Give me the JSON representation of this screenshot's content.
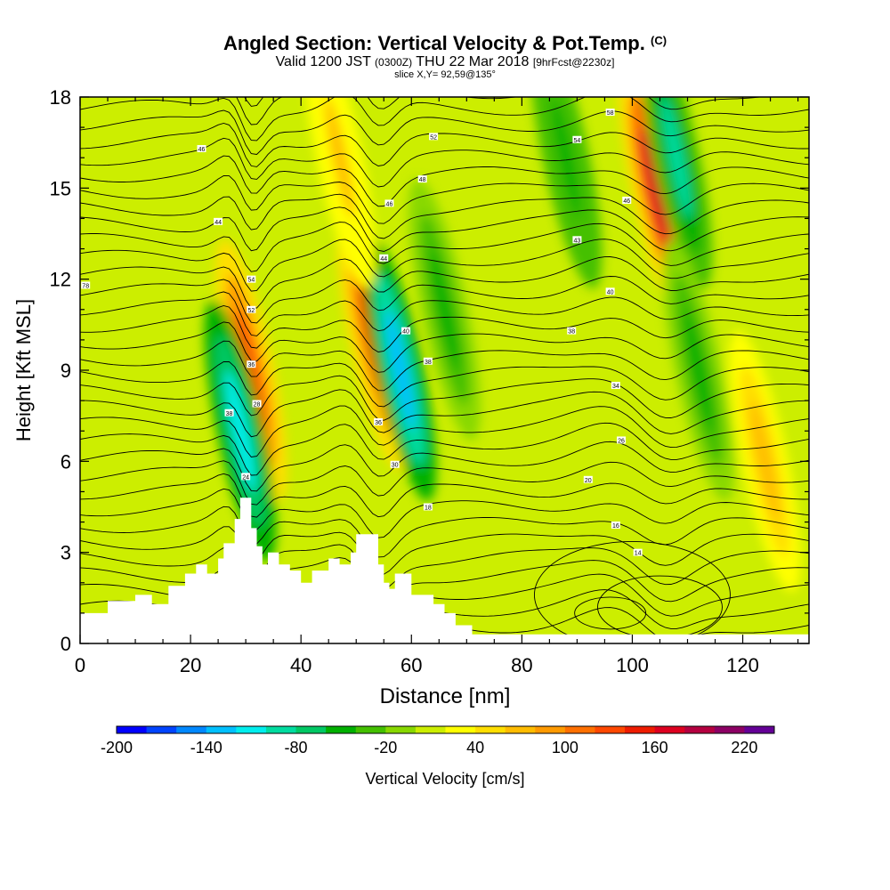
{
  "title": {
    "main": "Angled Section: Vertical Velocity & Pot.Temp.",
    "copyright": "(C)",
    "valid_prefix": "Valid 1200 JST",
    "valid_z": "(0300Z)",
    "valid_date": "THU 22 Mar 2018",
    "forecast": "[9hrFcst@2230z]",
    "slice": "slice X,Y= 92,59@135°"
  },
  "chart_data": {
    "type": "heatmap",
    "xlabel": "Distance [nm]",
    "ylabel": "Height [Kft MSL]",
    "xlim": [
      0,
      132
    ],
    "ylim": [
      0,
      18
    ],
    "x_ticks": [
      0,
      20,
      40,
      60,
      80,
      100,
      120
    ],
    "y_ticks": [
      0,
      3,
      6,
      9,
      12,
      15,
      18
    ],
    "terrain": [
      [
        0,
        1.0
      ],
      [
        4,
        1.0
      ],
      [
        5,
        1.4
      ],
      [
        9,
        1.4
      ],
      [
        10,
        1.6
      ],
      [
        12,
        1.6
      ],
      [
        13,
        1.3
      ],
      [
        15,
        1.3
      ],
      [
        16,
        1.9
      ],
      [
        18,
        1.9
      ],
      [
        19,
        2.3
      ],
      [
        21,
        2.6
      ],
      [
        22,
        2.6
      ],
      [
        23,
        2.3
      ],
      [
        24,
        2.3
      ],
      [
        25,
        2.8
      ],
      [
        26,
        3.3
      ],
      [
        27,
        3.3
      ],
      [
        28,
        4.1
      ],
      [
        29,
        4.8
      ],
      [
        30,
        4.8
      ],
      [
        31,
        3.8
      ],
      [
        32,
        3.2
      ],
      [
        33,
        2.6
      ],
      [
        34,
        3.0
      ],
      [
        35,
        3.0
      ],
      [
        36,
        2.6
      ],
      [
        38,
        2.4
      ],
      [
        40,
        2.0
      ],
      [
        41,
        2.0
      ],
      [
        42,
        2.4
      ],
      [
        44,
        2.4
      ],
      [
        45,
        2.8
      ],
      [
        47,
        2.6
      ],
      [
        49,
        3.0
      ],
      [
        50,
        3.6
      ],
      [
        53,
        3.6
      ],
      [
        54,
        2.6
      ],
      [
        55,
        2.0
      ],
      [
        56,
        1.8
      ],
      [
        57,
        2.3
      ],
      [
        59,
        2.3
      ],
      [
        60,
        1.6
      ],
      [
        63,
        1.6
      ],
      [
        64,
        1.3
      ],
      [
        66,
        1.0
      ],
      [
        68,
        0.6
      ],
      [
        70,
        0.6
      ],
      [
        71,
        0.3
      ],
      [
        132,
        0.3
      ]
    ],
    "colorbar": {
      "label": "Vertical Velocity [cm/s]",
      "min": -200,
      "max": 240,
      "step": 20,
      "tick_labels": [
        "-200",
        "-140",
        "-80",
        "-20",
        "40",
        "100",
        "160",
        "220"
      ],
      "colors": [
        "#0000ff",
        "#0044ff",
        "#0088ff",
        "#00c0ff",
        "#00eeee",
        "#00dca0",
        "#00c864",
        "#00b000",
        "#44c000",
        "#88d800",
        "#ccee00",
        "#ffff00",
        "#ffde00",
        "#ffbc00",
        "#ff9a00",
        "#ff7000",
        "#ff4800",
        "#ee1c00",
        "#dd0020",
        "#b40040",
        "#8c0064",
        "#640096"
      ]
    },
    "velocity_features": [
      {
        "x": 31,
        "z": 9,
        "v": 130
      },
      {
        "x": 29,
        "z": 7,
        "v": -120
      },
      {
        "x": 53,
        "z": 10,
        "v": 150
      },
      {
        "x": 58,
        "z": 9,
        "v": -130
      },
      {
        "x": 104,
        "z": 15,
        "v": 170
      },
      {
        "x": 108,
        "z": 16,
        "v": -90
      },
      {
        "x": 88,
        "z": 16,
        "v": -60
      },
      {
        "x": 124,
        "z": 6,
        "v": 70
      },
      {
        "x": 47,
        "z": 16,
        "v": 60
      },
      {
        "x": 66,
        "z": 11,
        "v": -50
      },
      {
        "x": 112,
        "z": 9,
        "v": -50
      }
    ],
    "contour_labels": [
      {
        "text": "46",
        "x": 22,
        "z": 16.3
      },
      {
        "text": "44",
        "x": 25,
        "z": 13.9
      },
      {
        "text": "78",
        "x": 1,
        "z": 11.8
      },
      {
        "text": "54",
        "x": 31,
        "z": 12.0
      },
      {
        "text": "52",
        "x": 31,
        "z": 11.0
      },
      {
        "text": "36",
        "x": 31,
        "z": 9.2
      },
      {
        "text": "38",
        "x": 27,
        "z": 7.6
      },
      {
        "text": "28",
        "x": 32,
        "z": 7.9
      },
      {
        "text": "24",
        "x": 30,
        "z": 5.5
      },
      {
        "text": "52",
        "x": 64,
        "z": 16.7
      },
      {
        "text": "48",
        "x": 62,
        "z": 15.3
      },
      {
        "text": "46",
        "x": 56,
        "z": 14.5
      },
      {
        "text": "44",
        "x": 55,
        "z": 12.7
      },
      {
        "text": "40",
        "x": 59,
        "z": 10.3
      },
      {
        "text": "38",
        "x": 63,
        "z": 9.3
      },
      {
        "text": "36",
        "x": 54,
        "z": 7.3
      },
      {
        "text": "30",
        "x": 57,
        "z": 5.9
      },
      {
        "text": "18",
        "x": 63,
        "z": 4.5
      },
      {
        "text": "58",
        "x": 96,
        "z": 17.5
      },
      {
        "text": "54",
        "x": 90,
        "z": 16.6
      },
      {
        "text": "46",
        "x": 99,
        "z": 14.6
      },
      {
        "text": "43",
        "x": 90,
        "z": 13.3
      },
      {
        "text": "40",
        "x": 96,
        "z": 11.6
      },
      {
        "text": "38",
        "x": 89,
        "z": 10.3
      },
      {
        "text": "34",
        "x": 97,
        "z": 8.5
      },
      {
        "text": "26",
        "x": 98,
        "z": 6.7
      },
      {
        "text": "20",
        "x": 92,
        "z": 5.4
      },
      {
        "text": "16",
        "x": 97,
        "z": 3.9
      },
      {
        "text": "14",
        "x": 101,
        "z": 3.0
      }
    ]
  }
}
